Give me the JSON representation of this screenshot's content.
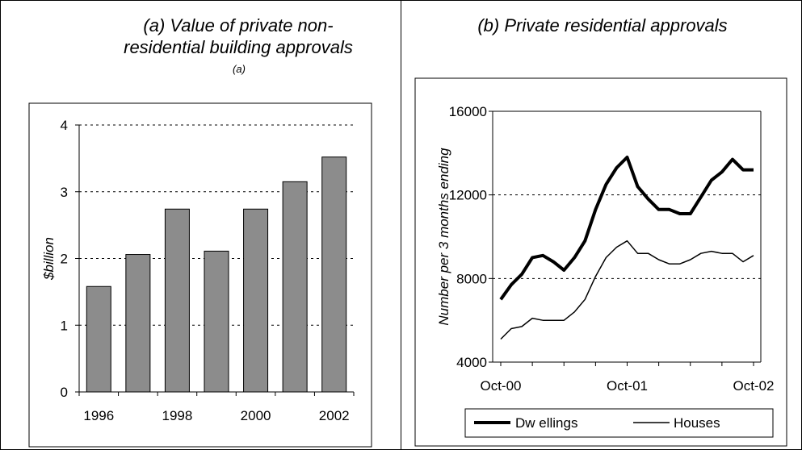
{
  "panels": [
    {
      "title": "(a) Value of private non-residential building approvals",
      "title_superscript": "(a)"
    },
    {
      "title": "(b) Private residential approvals"
    }
  ],
  "chart_data": [
    {
      "type": "bar",
      "title": "(a) Value of private non-residential building approvals",
      "ylabel": "$billion",
      "ylim": [
        0,
        4
      ],
      "yticks": [
        "0",
        "1",
        "2",
        "3",
        "4"
      ],
      "x_ticks": [
        "1996",
        "1998",
        "2000",
        "2002"
      ],
      "categories": [
        "1996",
        "1997",
        "1998",
        "1999",
        "2000",
        "2001",
        "2002"
      ],
      "values": [
        1.58,
        2.06,
        2.74,
        2.11,
        2.74,
        3.15,
        3.52
      ],
      "bar_color": "#8c8c8c",
      "grid": "dashed horizontal"
    },
    {
      "type": "line",
      "title": "(b) Private residential approvals",
      "ylabel": "Number per 3 months ending",
      "ylim": [
        4000,
        16000
      ],
      "yticks": [
        "4000",
        "8000",
        "12000",
        "16000"
      ],
      "x_ticks": [
        "Oct-00",
        "Oct-01",
        "Oct-02"
      ],
      "x": [
        "Oct-00",
        "Nov-00",
        "Dec-00",
        "Jan-01",
        "Feb-01",
        "Mar-01",
        "Apr-01",
        "May-01",
        "Jun-01",
        "Jul-01",
        "Aug-01",
        "Sep-01",
        "Oct-01",
        "Nov-01",
        "Dec-01",
        "Jan-02",
        "Feb-02",
        "Mar-02",
        "Apr-02",
        "May-02",
        "Jun-02",
        "Jul-02",
        "Aug-02",
        "Sep-02",
        "Oct-02"
      ],
      "series": [
        {
          "name": "Dw ellings",
          "line": "thick",
          "values": [
            7000,
            7700,
            8200,
            9000,
            9100,
            8800,
            8400,
            9000,
            9800,
            11300,
            12500,
            13300,
            13800,
            12400,
            11800,
            11300,
            11300,
            11100,
            11100,
            11900,
            12700,
            13100,
            13700,
            13200,
            13200
          ]
        },
        {
          "name": "Houses",
          "line": "thin",
          "values": [
            5100,
            5600,
            5700,
            6100,
            6000,
            6000,
            6000,
            6400,
            7000,
            8100,
            9000,
            9500,
            9800,
            9200,
            9200,
            8900,
            8700,
            8700,
            8900,
            9200,
            9300,
            9200,
            9200,
            8800,
            9100
          ]
        }
      ],
      "legend_position": "bottom",
      "grid": "dashed horizontal"
    }
  ]
}
